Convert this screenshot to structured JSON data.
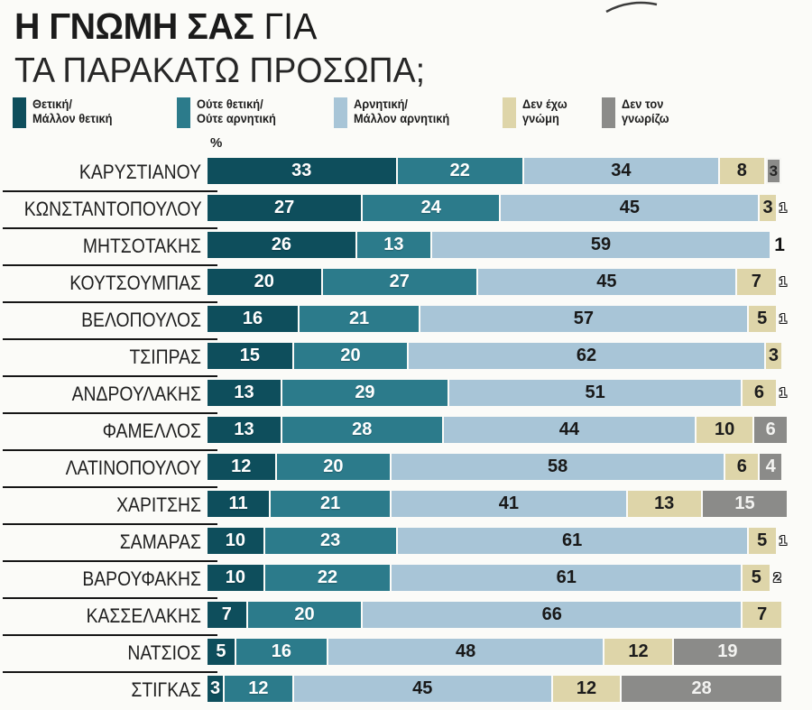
{
  "title": {
    "emphasis": "Η ΓΝΩΜΗ ΣΑΣ",
    "rest": " ΓΙΑ",
    "line2": "ΤΑ ΠΑΡΑΚΑΤΩ ΠΡΟΣΩΠΑ;"
  },
  "unit_label": "%",
  "colors": {
    "background": "#fbfbf8",
    "positive": "#0e4e5c",
    "neutral": "#2c7b8b",
    "negative": "#a8c5d7",
    "no_opinion": "#ded5a9",
    "unknown": "#8b8b89",
    "separator": "#161616",
    "title_text": "#1b1b1b"
  },
  "legend": [
    {
      "key": "positive",
      "line1": "Θετική/",
      "line2": "Μάλλον θετική"
    },
    {
      "key": "neutral",
      "line1": "Ούτε θετική/",
      "line2": "Ούτε αρνητική"
    },
    {
      "key": "negative",
      "line1": "Αρνητική/",
      "line2": "Μάλλον αρνητική"
    },
    {
      "key": "no_opinion",
      "line1": "Δεν έχω",
      "line2": "γνώμη"
    },
    {
      "key": "unknown",
      "line1": "Δεν τον",
      "line2": "γνωρίζω"
    }
  ],
  "chart_data": {
    "type": "bar",
    "orientation": "horizontal_stacked",
    "title": "Η ΓΝΩΜΗ ΣΑΣ ΓΙΑ ΤΑ ΠΑΡΑΚΑΤΩ ΠΡΟΣΩΠΑ;",
    "unit": "%",
    "xlim": [
      0,
      100
    ],
    "legend_position": "top",
    "series_keys": [
      "positive",
      "neutral",
      "negative",
      "no_opinion",
      "unknown"
    ],
    "series_names": [
      "Θετική/Μάλλον θετική",
      "Ούτε θετική/Ούτε αρνητική",
      "Αρνητική/Μάλλον αρνητική",
      "Δεν έχω γνώμη",
      "Δεν τον γνωρίζω"
    ],
    "rows": [
      {
        "name": "ΚΑΡΥΣΤΙΑΝΟΥ",
        "values": [
          33,
          22,
          34,
          8,
          3
        ],
        "after": null,
        "boxed_segment": 4
      },
      {
        "name": "ΚΩΝΣΤΑΝΤΟΠΟΥΛΟΥ",
        "values": [
          27,
          24,
          45,
          3,
          1
        ],
        "after": {
          "text": "1",
          "style": "outline"
        }
      },
      {
        "name": "ΜΗΤΣΟΤΑΚΗΣ",
        "values": [
          26,
          13,
          59,
          1,
          1
        ],
        "after": {
          "text": "1",
          "style": "solid"
        }
      },
      {
        "name": "ΚΟΥΤΣΟΥΜΠΑΣ",
        "values": [
          20,
          27,
          45,
          7,
          1
        ],
        "after": {
          "text": "1",
          "style": "outline"
        }
      },
      {
        "name": "ΒΕΛΟΠΟΥΛΟΣ",
        "values": [
          16,
          21,
          57,
          5,
          1
        ],
        "after": {
          "text": "1",
          "style": "outline"
        }
      },
      {
        "name": "ΤΣΙΠΡΑΣ",
        "values": [
          15,
          20,
          62,
          3,
          0
        ],
        "after": null
      },
      {
        "name": "ΑΝΔΡΟΥΛΑΚΗΣ",
        "values": [
          13,
          29,
          51,
          6,
          1
        ],
        "after": {
          "text": "1",
          "style": "outline"
        }
      },
      {
        "name": "ΦΑΜΕΛΛΟΣ",
        "values": [
          13,
          28,
          44,
          10,
          6
        ],
        "after": null
      },
      {
        "name": "ΛΑΤΙΝΟΠΟΥΛΟΥ",
        "values": [
          12,
          20,
          58,
          6,
          4
        ],
        "after": null
      },
      {
        "name": "ΧΑΡΙΤΣΗΣ",
        "values": [
          11,
          21,
          41,
          13,
          15
        ],
        "after": null
      },
      {
        "name": "ΣΑΜΑΡΑΣ",
        "values": [
          10,
          23,
          61,
          5,
          1
        ],
        "after": {
          "text": "1",
          "style": "outline"
        }
      },
      {
        "name": "ΒΑΡΟΥΦΑΚΗΣ",
        "values": [
          10,
          22,
          61,
          5,
          2
        ],
        "after": {
          "text": "2",
          "style": "outline"
        }
      },
      {
        "name": "ΚΑΣΣΕΛΑΚΗΣ",
        "values": [
          7,
          20,
          66,
          7,
          0
        ],
        "after": null
      },
      {
        "name": "ΝΑΤΣΙΟΣ",
        "values": [
          5,
          16,
          48,
          12,
          19
        ],
        "after": null
      },
      {
        "name": "ΣΤΙΓΚΑΣ",
        "values": [
          3,
          12,
          45,
          12,
          28
        ],
        "after": null
      }
    ]
  }
}
